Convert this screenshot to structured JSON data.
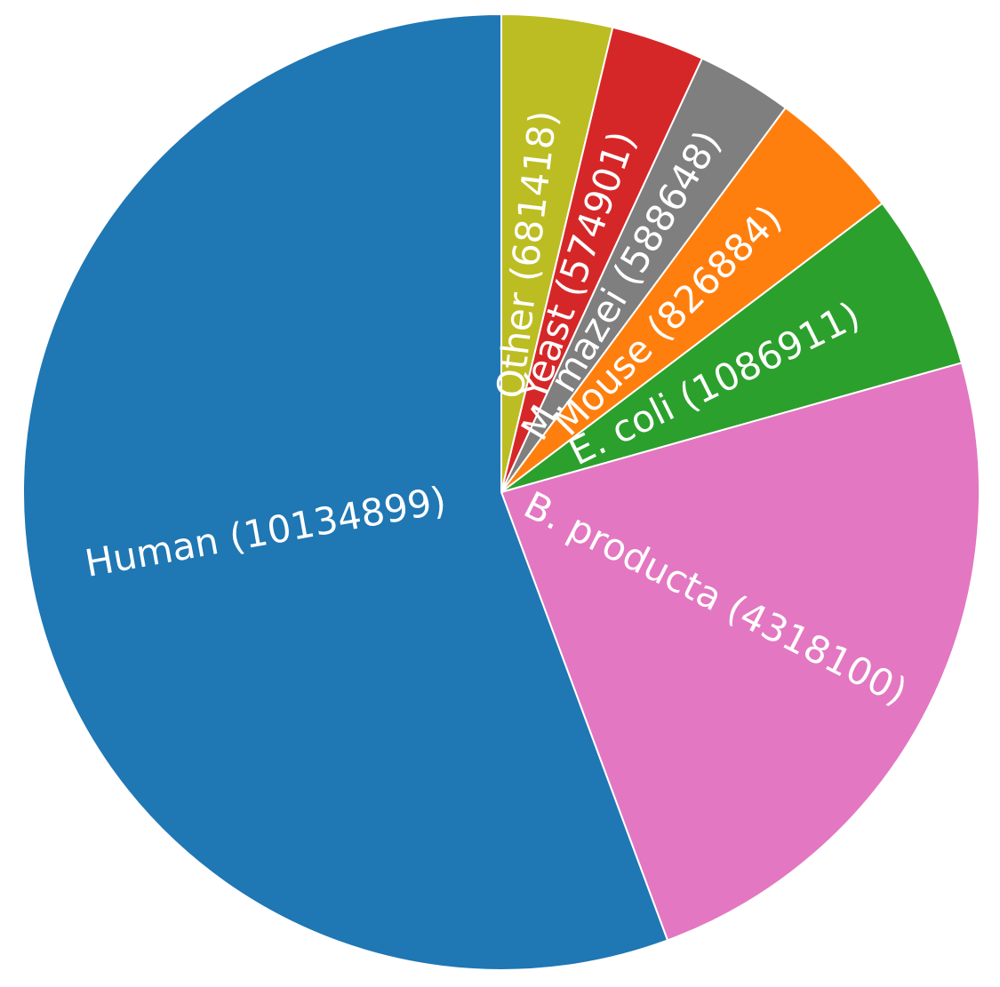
{
  "chart_data": {
    "type": "pie",
    "value_labels": [
      "Other (681418)",
      "Yeast (574901)",
      "M. mazei (588648)",
      "Mouse (826884)",
      "E. coli (1086911)",
      "B. producta (4318100)",
      "Human (10134899)"
    ],
    "values": [
      681418,
      574901,
      588648,
      826884,
      1086911,
      4318100,
      10134899
    ],
    "colors": [
      "#bcbd22",
      "#d62728",
      "#7f7f7f",
      "#ff7f0e",
      "#2ca02c",
      "#e377c2",
      "#1f77b4"
    ],
    "start": "top",
    "direction": "clockwise",
    "rotate_labels": true
  }
}
